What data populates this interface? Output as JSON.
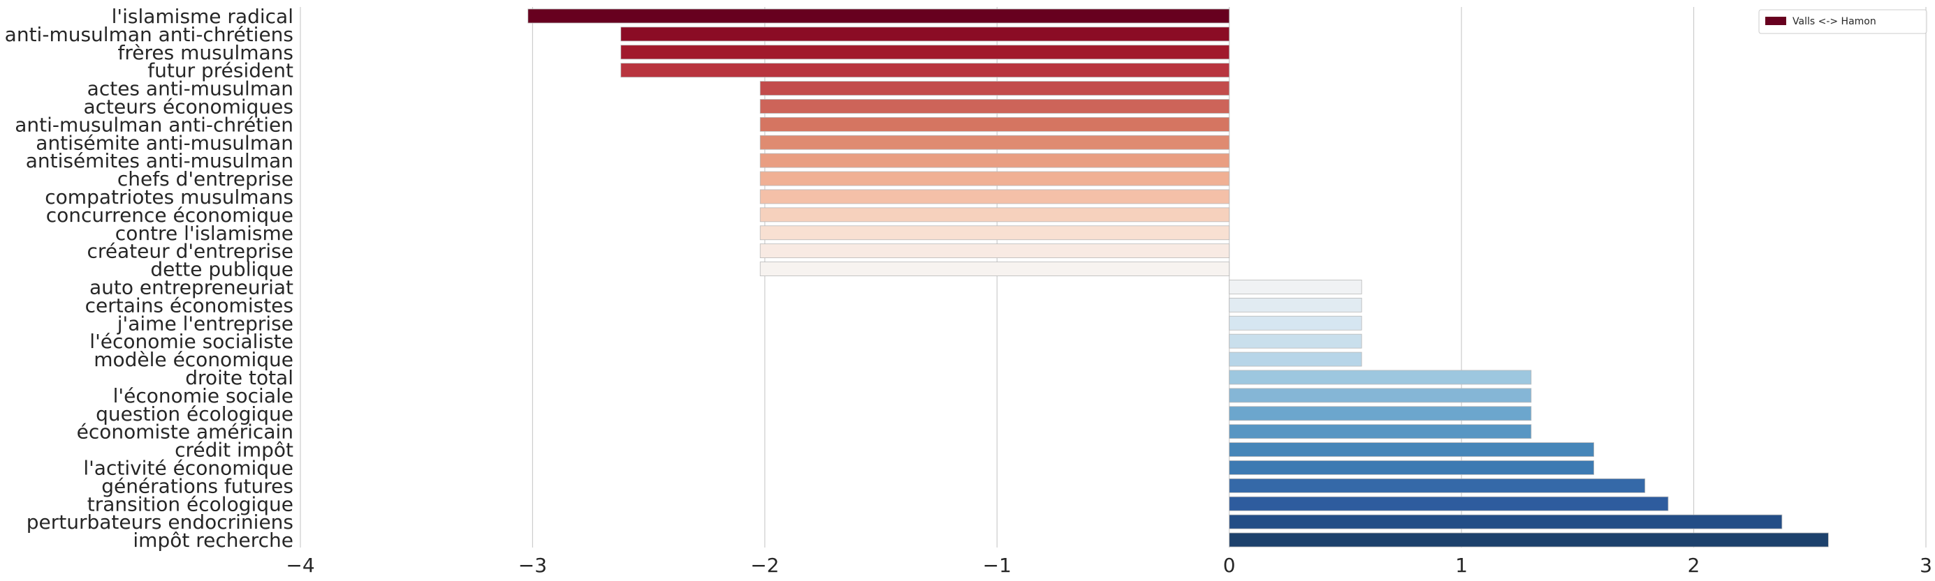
{
  "chart_data": {
    "type": "bar",
    "orientation": "horizontal",
    "categories": [
      "l'islamisme radical",
      "anti-musulman anti-chrétiens",
      "frères musulmans",
      "futur président",
      "actes anti-musulman",
      "acteurs économiques",
      "anti-musulman anti-chrétien",
      "antisémite anti-musulman",
      "antisémites anti-musulman",
      "chefs d'entreprise",
      "compatriotes musulmans",
      "concurrence économique",
      "contre l'islamisme",
      "créateur d'entreprise",
      "dette publique",
      "auto entrepreneuriat",
      "certains économistes",
      "j'aime l'entreprise",
      "l'économie socialiste",
      "modèle économique",
      "droite total",
      "l'économie sociale",
      "question écologique",
      "économiste américain",
      "crédit impôt",
      "l'activité économique",
      "générations futures",
      "transition écologique",
      "perturbateurs endocriniens",
      "impôt recherche"
    ],
    "series": [
      {
        "name": "Valls <-> Hamon",
        "values": [
          -3.02,
          -2.62,
          -2.62,
          -2.62,
          -2.02,
          -2.02,
          -2.02,
          -2.02,
          -2.02,
          -2.02,
          -2.02,
          -2.02,
          -2.02,
          -2.02,
          -2.02,
          0.57,
          0.57,
          0.57,
          0.57,
          0.57,
          1.3,
          1.3,
          1.3,
          1.3,
          1.57,
          1.57,
          1.79,
          1.89,
          2.38,
          2.58
        ]
      }
    ],
    "xlim": [
      -4,
      3
    ],
    "xticks": [
      -4,
      -3,
      -2,
      -1,
      0,
      1,
      2,
      3
    ],
    "xtick_labels": [
      "−4",
      "−3",
      "−2",
      "−1",
      "0",
      "1",
      "2",
      "3"
    ],
    "title": "",
    "xlabel": "",
    "ylabel": "",
    "grid": "vertical",
    "legend": {
      "placement": "top-right",
      "label": "Valls <-> Hamon",
      "color": "#67001f"
    },
    "colormap": "RdBu",
    "colors": [
      "#67001f",
      "#8b0c25",
      "#a1192c",
      "#b8343e",
      "#c24c4c",
      "#cd6459",
      "#d57561",
      "#df8b71",
      "#e99e82",
      "#f0b094",
      "#f4c0a8",
      "#f6d1bd",
      "#f8e0d2",
      "#f8eae3",
      "#f7f3f0",
      "#f0f2f4",
      "#e1ebf2",
      "#d6e6f1",
      "#c9dfec",
      "#b7d5e8",
      "#9dc7df",
      "#85b6d6",
      "#6ca6cd",
      "#5896c3",
      "#4686b9",
      "#3d7ab2",
      "#3569a8",
      "#2e5c9e",
      "#234d86",
      "#1d416c"
    ]
  }
}
